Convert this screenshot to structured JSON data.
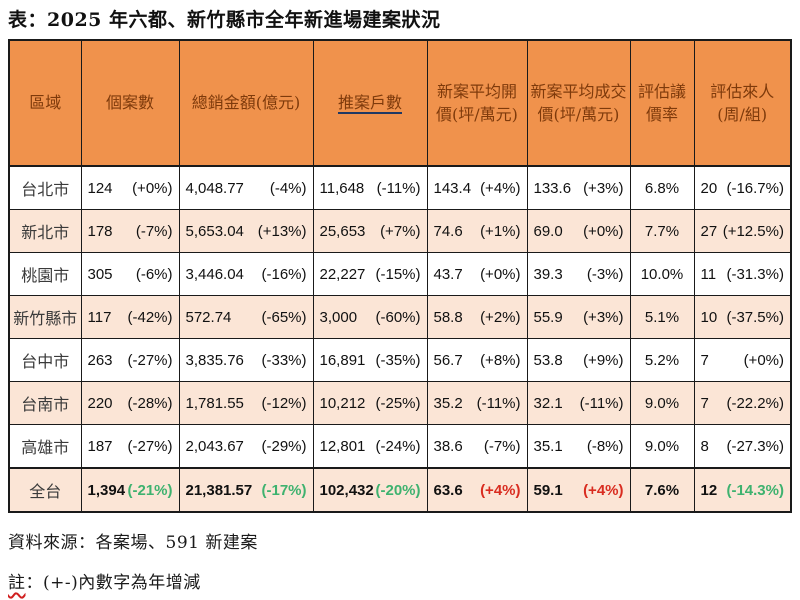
{
  "title": "表：2025 年六都、新竹縣市全年新進場建案狀況",
  "chart_data": {
    "type": "table",
    "columns": [
      "區域",
      "個案數",
      "總銷金額(億元)",
      "推案戶數",
      "新案平均開價(坪/萬元)",
      "新案平均成交價(坪/萬元)",
      "評估議價率",
      "評估來人 (周/組)"
    ],
    "underlined_column_index": 3,
    "rows": [
      {
        "region": "台北市",
        "cells": [
          {
            "v": "124",
            "p": "(+0%)"
          },
          {
            "v": "4,048.77",
            "p": "(-4%)"
          },
          {
            "v": "11,648",
            "p": "(-11%)"
          },
          {
            "v": "143.4",
            "p": "(+4%)"
          },
          {
            "v": "133.6",
            "p": "(+3%)"
          },
          {
            "v": "6.8%"
          },
          {
            "v": "20",
            "p": "(-16.7%)"
          }
        ]
      },
      {
        "region": "新北市",
        "cells": [
          {
            "v": "178",
            "p": "(-7%)"
          },
          {
            "v": "5,653.04",
            "p": "(+13%)"
          },
          {
            "v": "25,653",
            "p": "(+7%)"
          },
          {
            "v": "74.6",
            "p": "(+1%)"
          },
          {
            "v": "69.0",
            "p": "(+0%)"
          },
          {
            "v": "7.7%"
          },
          {
            "v": "27",
            "p": "(+12.5%)"
          }
        ]
      },
      {
        "region": "桃園市",
        "cells": [
          {
            "v": "305",
            "p": "(-6%)"
          },
          {
            "v": "3,446.04",
            "p": "(-16%)"
          },
          {
            "v": "22,227",
            "p": "(-15%)"
          },
          {
            "v": "43.7",
            "p": "(+0%)"
          },
          {
            "v": "39.3",
            "p": "(-3%)"
          },
          {
            "v": "10.0%"
          },
          {
            "v": "11",
            "p": "(-31.3%)"
          }
        ]
      },
      {
        "region": "新竹縣市",
        "cells": [
          {
            "v": "117",
            "p": "(-42%)"
          },
          {
            "v": "572.74",
            "p": "(-65%)"
          },
          {
            "v": "3,000",
            "p": "(-60%)"
          },
          {
            "v": "58.8",
            "p": "(+2%)"
          },
          {
            "v": "55.9",
            "p": "(+3%)"
          },
          {
            "v": "5.1%"
          },
          {
            "v": "10",
            "p": "(-37.5%)"
          }
        ]
      },
      {
        "region": "台中市",
        "cells": [
          {
            "v": "263",
            "p": "(-27%)"
          },
          {
            "v": "3,835.76",
            "p": "(-33%)"
          },
          {
            "v": "16,891",
            "p": "(-35%)"
          },
          {
            "v": "56.7",
            "p": "(+8%)"
          },
          {
            "v": "53.8",
            "p": "(+9%)"
          },
          {
            "v": "5.2%"
          },
          {
            "v": "7",
            "p": "(+0%)"
          }
        ]
      },
      {
        "region": "台南市",
        "cells": [
          {
            "v": "220",
            "p": "(-28%)"
          },
          {
            "v": "1,781.55",
            "p": "(-12%)"
          },
          {
            "v": "10,212",
            "p": "(-25%)"
          },
          {
            "v": "35.2",
            "p": "(-11%)"
          },
          {
            "v": "32.1",
            "p": "(-11%)"
          },
          {
            "v": "9.0%"
          },
          {
            "v": "7",
            "p": "(-22.2%)"
          }
        ]
      },
      {
        "region": "高雄市",
        "cells": [
          {
            "v": "187",
            "p": "(-27%)"
          },
          {
            "v": "2,043.67",
            "p": "(-29%)"
          },
          {
            "v": "12,801",
            "p": "(-24%)"
          },
          {
            "v": "38.6",
            "p": "(-7%)"
          },
          {
            "v": "35.1",
            "p": "(-8%)"
          },
          {
            "v": "9.0%"
          },
          {
            "v": "8",
            "p": "(-27.3%)"
          }
        ]
      },
      {
        "region": "全台",
        "is_total": true,
        "cells": [
          {
            "v": "1,394",
            "p": "(-21%)",
            "pc": "green"
          },
          {
            "v": "21,381.57",
            "p": "(-17%)",
            "pc": "green"
          },
          {
            "v": "102,432",
            "p": "(-20%)",
            "pc": "green"
          },
          {
            "v": "63.6",
            "p": "(+4%)",
            "pc": "red"
          },
          {
            "v": "59.1",
            "p": "(+4%)",
            "pc": "red"
          },
          {
            "v": "7.6%"
          },
          {
            "v": "12",
            "p": "(-14.3%)",
            "pc": "green"
          }
        ]
      }
    ],
    "source_note": "資料來源：各案場、591 新建案",
    "note_prefix": "註",
    "note_rest": "：(+-)內數字為年增減"
  },
  "colors": {
    "header_bg": "#F0924C",
    "header_text": "#7E3A0B",
    "row_shaded_bg": "#FBE5D6",
    "row_plain_bg": "#FFFFFF",
    "positive_pct_red": "#D92C20",
    "negative_pct_green": "#3EB26F",
    "underline_link": "#1F3864",
    "grid_border": "#1A1A1A"
  }
}
